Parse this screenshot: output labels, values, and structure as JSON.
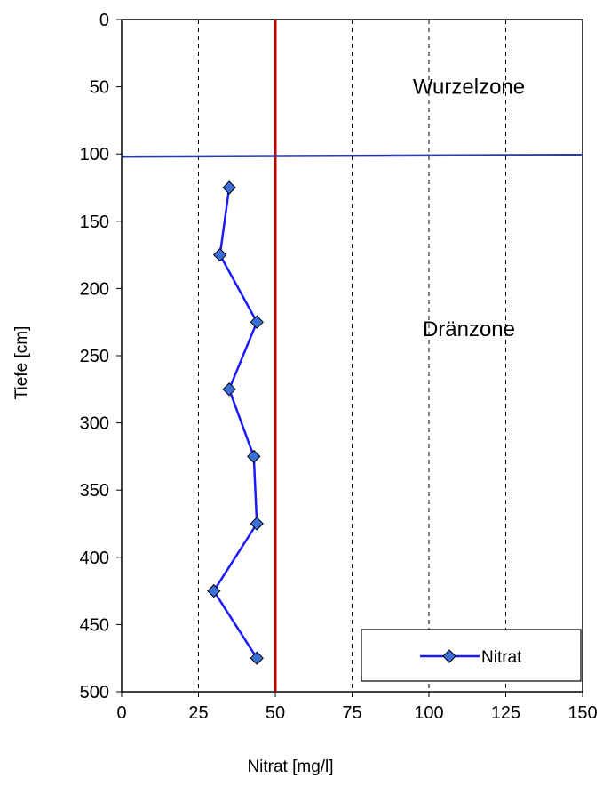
{
  "chart_data": {
    "type": "line",
    "xlabel": "Nitrat [mg/l]",
    "ylabel": "Tiefe [cm]",
    "xlim": [
      0,
      150
    ],
    "ylim": [
      0,
      500
    ],
    "y_inverted": true,
    "x_axis_position": "bottom",
    "grid": "vertical dashed",
    "x_ticks": [
      "0",
      "25",
      "50",
      "75",
      "100",
      "125",
      "150"
    ],
    "y_ticks": [
      "0",
      "50",
      "100",
      "150",
      "200",
      "250",
      "300",
      "350",
      "400",
      "450",
      "500"
    ],
    "x_tick_values": [
      0,
      25,
      50,
      75,
      100,
      125,
      150
    ],
    "y_tick_values": [
      0,
      50,
      100,
      150,
      200,
      250,
      300,
      350,
      400,
      450,
      500
    ],
    "series": [
      {
        "name": "Nitrat",
        "color": "#1a1aff",
        "marker": "diamond",
        "marker_fill": "#3a6fd8",
        "x": [
          35,
          32,
          44,
          35,
          43,
          44,
          30,
          44
        ],
        "y": [
          125,
          175,
          225,
          275,
          325,
          375,
          425,
          475
        ]
      }
    ],
    "reference_lines": [
      {
        "orientation": "vertical",
        "x": 50,
        "color": "#c00000"
      },
      {
        "orientation": "horizontal",
        "y": 102,
        "color": "#2e3a9e"
      }
    ],
    "annotations": [
      {
        "text": "Wurzelzone",
        "x": 113,
        "y": 50
      },
      {
        "text": "Dränzone",
        "x": 113,
        "y": 230
      }
    ],
    "legend": {
      "position": "bottom-right",
      "entries": [
        "Nitrat"
      ]
    }
  }
}
